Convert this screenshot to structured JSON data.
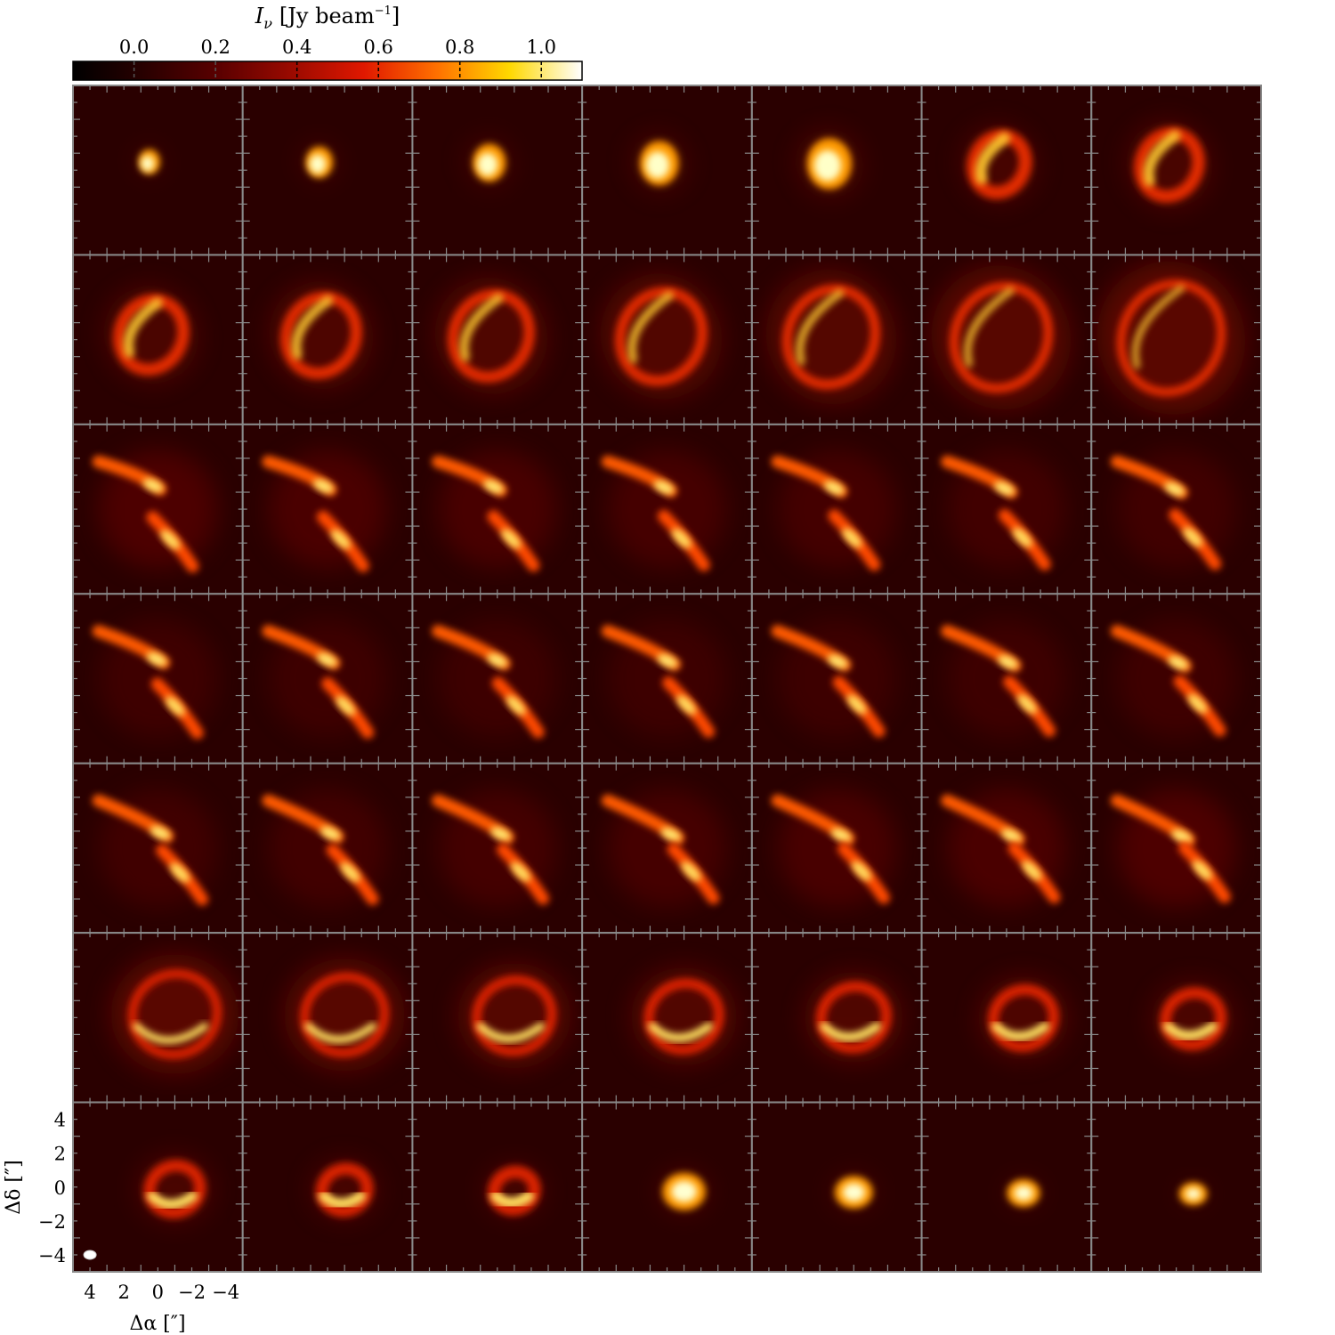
{
  "colorbar": {
    "label_symbol": "I",
    "label_subscript": "ν",
    "label_units": "[Jy beam",
    "label_exponent": "−1",
    "label_close": "]",
    "ticks": [
      "0.0",
      "0.2",
      "0.4",
      "0.6",
      "0.8",
      "1.0"
    ],
    "range": [
      -0.15,
      1.1
    ],
    "colormap": [
      "#000000",
      "#2a0000",
      "#5a0000",
      "#9a0a00",
      "#e01800",
      "#ff7000",
      "#ffd800",
      "#ffffff"
    ]
  },
  "axes": {
    "xlabel": "Δα [″]",
    "ylabel": "Δδ [″]",
    "xticks": [
      "4",
      "2",
      "0",
      "−2",
      "−4"
    ],
    "yticks": [
      "4",
      "2",
      "0",
      "−2",
      "−4"
    ],
    "range": [
      -5,
      5
    ]
  },
  "chart_data": {
    "type": "heatmap",
    "description_kind": "channel maps",
    "rows": 7,
    "cols": 7,
    "panel_count": 49,
    "beam": {
      "major_arcsec": 0.9,
      "minor_arcsec": 0.6
    }
  }
}
